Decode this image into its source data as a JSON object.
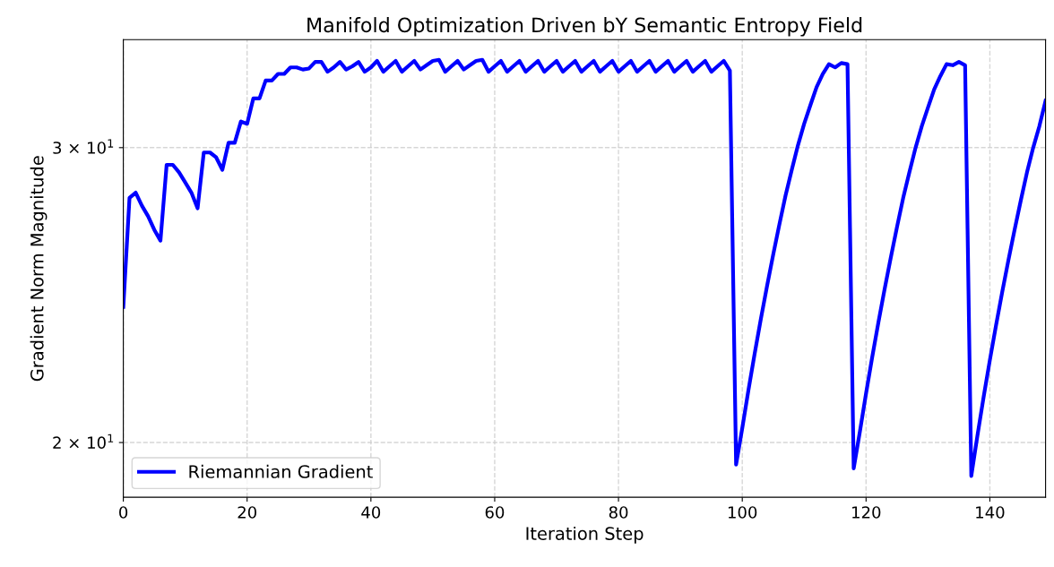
{
  "chart_data": {
    "type": "line",
    "title": "Manifold Optimization Driven bY Semantic Entropy Field",
    "xlabel": "Iteration Step",
    "ylabel": "Gradient Norm Magnitude",
    "x": [
      0,
      1,
      2,
      3,
      4,
      5,
      6,
      7,
      8,
      9,
      10,
      11,
      12,
      13,
      14,
      15,
      16,
      17,
      18,
      19,
      20,
      21,
      22,
      23,
      24,
      25,
      26,
      27,
      28,
      29,
      30,
      31,
      32,
      33,
      34,
      35,
      36,
      37,
      38,
      39,
      40,
      41,
      42,
      43,
      44,
      45,
      46,
      47,
      48,
      49,
      50,
      51,
      52,
      53,
      54,
      55,
      56,
      57,
      58,
      59,
      60,
      61,
      62,
      63,
      64,
      65,
      66,
      67,
      68,
      69,
      70,
      71,
      72,
      73,
      74,
      75,
      76,
      77,
      78,
      79,
      80,
      81,
      82,
      83,
      84,
      85,
      86,
      87,
      88,
      89,
      90,
      91,
      92,
      93,
      94,
      95,
      96,
      97,
      98,
      99,
      100,
      101,
      102,
      103,
      104,
      105,
      106,
      107,
      108,
      109,
      110,
      111,
      112,
      113,
      114,
      115,
      116,
      117,
      118,
      119,
      120,
      121,
      122,
      123,
      124,
      125,
      126,
      127,
      128,
      129,
      130,
      131,
      132,
      133,
      134,
      135,
      136,
      137,
      138,
      139,
      140,
      141,
      142,
      143,
      144,
      145,
      146,
      147,
      148,
      149
    ],
    "series": [
      {
        "name": "Riemannian Gradient",
        "color": "#0000ff",
        "values": [
          24.1,
          28.0,
          28.2,
          27.7,
          27.3,
          26.8,
          26.4,
          29.3,
          29.3,
          29.0,
          28.6,
          28.2,
          27.6,
          29.8,
          29.8,
          29.6,
          29.1,
          30.2,
          30.2,
          31.1,
          31.0,
          32.1,
          32.1,
          32.9,
          32.9,
          33.2,
          33.2,
          33.5,
          33.5,
          33.4,
          33.45,
          33.75,
          33.75,
          33.3,
          33.5,
          33.75,
          33.4,
          33.55,
          33.75,
          33.3,
          33.5,
          33.8,
          33.3,
          33.55,
          33.8,
          33.3,
          33.55,
          33.8,
          33.4,
          33.6,
          33.8,
          33.85,
          33.3,
          33.55,
          33.8,
          33.4,
          33.6,
          33.8,
          33.85,
          33.3,
          33.55,
          33.8,
          33.3,
          33.55,
          33.8,
          33.3,
          33.55,
          33.8,
          33.3,
          33.55,
          33.8,
          33.3,
          33.55,
          33.8,
          33.3,
          33.55,
          33.8,
          33.3,
          33.55,
          33.8,
          33.3,
          33.55,
          33.8,
          33.3,
          33.55,
          33.8,
          33.3,
          33.55,
          33.8,
          33.3,
          33.55,
          33.8,
          33.3,
          33.55,
          33.8,
          33.3,
          33.55,
          33.8,
          33.35,
          19.4,
          20.4,
          21.5,
          22.6,
          23.7,
          24.8,
          25.9,
          27.0,
          28.1,
          29.1,
          30.1,
          31.0,
          31.8,
          32.6,
          33.2,
          33.65,
          33.5,
          33.7,
          33.65,
          19.3,
          20.3,
          21.4,
          22.5,
          23.6,
          24.7,
          25.8,
          26.9,
          28.0,
          29.0,
          30.0,
          30.9,
          31.7,
          32.5,
          33.1,
          33.65,
          33.6,
          33.75,
          33.6,
          19.1,
          20.2,
          21.3,
          22.4,
          23.5,
          24.6,
          25.7,
          26.8,
          27.9,
          29.0,
          30.0,
          30.9,
          32.0
        ]
      }
    ],
    "xlim": [
      0,
      149
    ],
    "xticks": [
      0,
      20,
      40,
      60,
      80,
      100,
      120,
      140
    ],
    "log": "y",
    "ylim": [
      18.55,
      34.8
    ],
    "yticks": [
      {
        "value": 20,
        "label": "2 × 10$^{1}$"
      },
      {
        "value": 30,
        "label": "3 × 10$^{1}$"
      }
    ],
    "grid": true,
    "legend": "lower left",
    "marker": "none",
    "line_style": "solid"
  }
}
